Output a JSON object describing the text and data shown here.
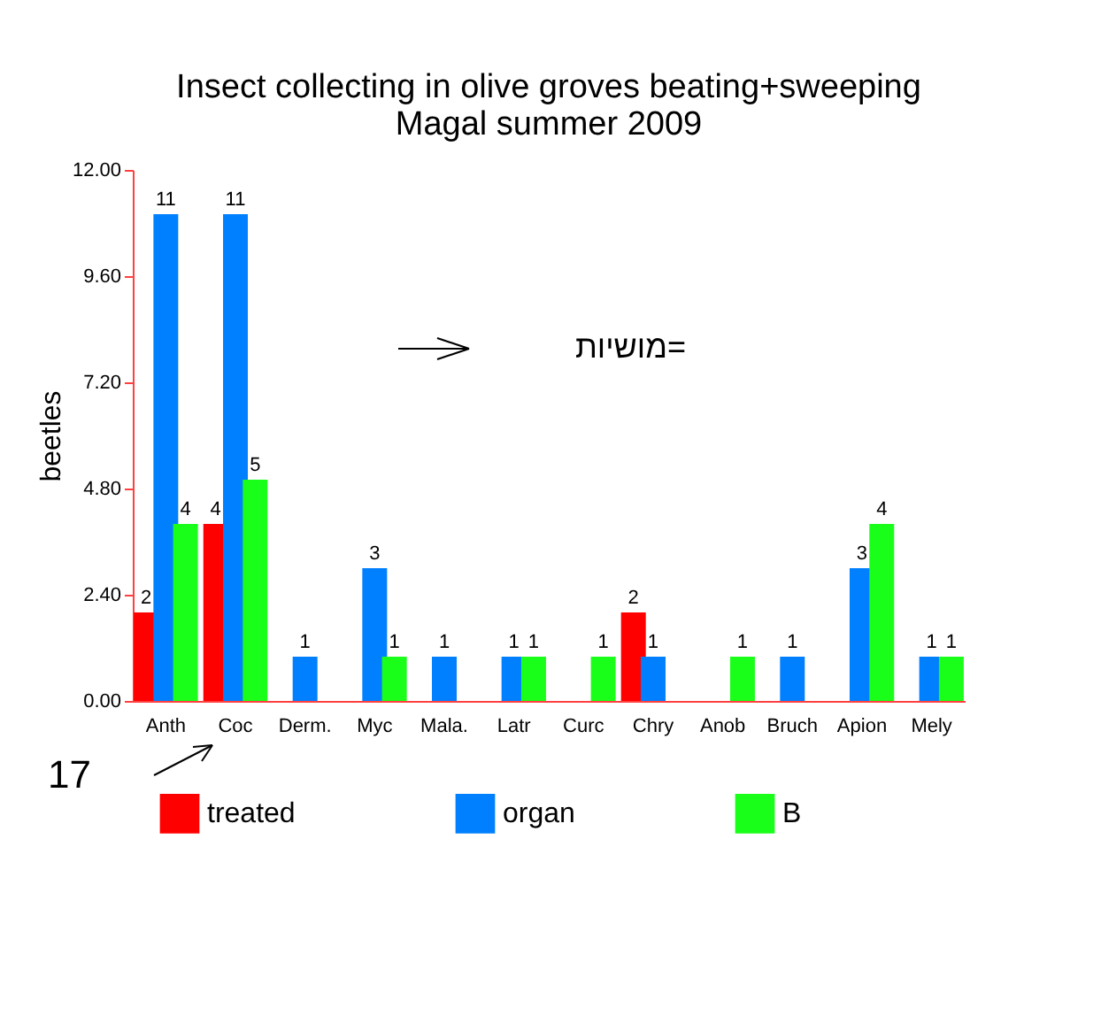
{
  "chart_data": {
    "type": "bar",
    "title": [
      "Insect collecting in olive groves beating+sweeping",
      "Magal summer 2009"
    ],
    "ylabel": "beetles",
    "categories": [
      "Anth",
      "Coc",
      "Derm.",
      "Myc",
      "Mala.",
      "Latr",
      "Curc",
      "Chry",
      "Anob",
      "Bruch",
      "Apion",
      "Mely"
    ],
    "series": [
      {
        "name": "treated",
        "color": "#ff0000",
        "values": [
          2,
          4,
          null,
          null,
          null,
          null,
          null,
          2,
          null,
          null,
          null,
          null
        ]
      },
      {
        "name": "organ",
        "color": "#0080ff",
        "values": [
          11,
          11,
          1,
          3,
          1,
          1,
          null,
          1,
          null,
          1,
          3,
          1
        ]
      },
      {
        "name": "B",
        "color": "#1aff1a",
        "values": [
          4,
          5,
          null,
          1,
          null,
          1,
          1,
          null,
          1,
          null,
          4,
          1
        ]
      }
    ],
    "ylim": [
      0,
      12
    ],
    "yticks": [
      {
        "value": 0,
        "label": "0.00"
      },
      {
        "value": 2.4,
        "label": "2.40"
      },
      {
        "value": 4.8,
        "label": "4.80"
      },
      {
        "value": 7.2,
        "label": "7.20"
      },
      {
        "value": 9.6,
        "label": "9.60"
      },
      {
        "value": 12,
        "label": "12.00"
      }
    ],
    "data_labels": true,
    "grid": false,
    "legend": "bottom",
    "annotations": [
      "מושיות=",
      "17"
    ]
  }
}
